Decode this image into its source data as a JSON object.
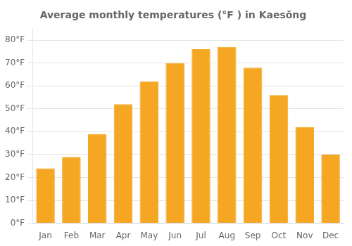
{
  "chart_data": {
    "type": "bar",
    "title": "Average monthly temperatures (°F ) in Kaesŏng",
    "categories": [
      "Jan",
      "Feb",
      "Mar",
      "Apr",
      "May",
      "Jun",
      "Jul",
      "Aug",
      "Sep",
      "Oct",
      "Nov",
      "Dec"
    ],
    "values": [
      24,
      29,
      39,
      52,
      62,
      70,
      76,
      77,
      68,
      56,
      42,
      30
    ],
    "color": "#F5A623",
    "ylim": [
      0,
      85
    ],
    "yticks": [
      {
        "value": 0,
        "label": "0°F"
      },
      {
        "value": 10,
        "label": "10°F"
      },
      {
        "value": 20,
        "label": "20°F"
      },
      {
        "value": 30,
        "label": "30°F"
      },
      {
        "value": 40,
        "label": "40°F"
      },
      {
        "value": 50,
        "label": "50°F"
      },
      {
        "value": 60,
        "label": "60°F"
      },
      {
        "value": 70,
        "label": "70°F"
      },
      {
        "value": 80,
        "label": "80°F"
      }
    ],
    "grid": true
  }
}
